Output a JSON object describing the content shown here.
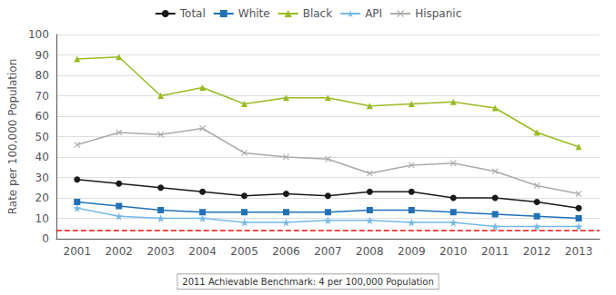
{
  "chart_data": {
    "type": "line",
    "categories": [
      "2001",
      "2002",
      "2003",
      "2004",
      "2005",
      "2006",
      "2007",
      "2008",
      "2009",
      "2010",
      "2011",
      "2012",
      "2013"
    ],
    "series": [
      {
        "name": "Total",
        "color": "#1a1a1a",
        "marker": "circle",
        "values": [
          29,
          27,
          25,
          23,
          21,
          22,
          21,
          23,
          23,
          20,
          20,
          18,
          15
        ]
      },
      {
        "name": "White",
        "color": "#2171b5",
        "marker": "square",
        "values": [
          18,
          16,
          14,
          13,
          13,
          13,
          13,
          14,
          14,
          13,
          12,
          11,
          10
        ]
      },
      {
        "name": "Black",
        "color": "#99bb22",
        "marker": "triangle",
        "values": [
          88,
          89,
          70,
          74,
          66,
          69,
          69,
          65,
          66,
          67,
          64,
          52,
          45
        ]
      },
      {
        "name": "API",
        "color": "#74b9e8",
        "marker": "star",
        "values": [
          15,
          11,
          10,
          10,
          8,
          8,
          9,
          9,
          8,
          8,
          6,
          6,
          6
        ]
      },
      {
        "name": "Hispanic",
        "color": "#aaaaaa",
        "marker": "x",
        "values": [
          46,
          52,
          51,
          54,
          42,
          40,
          39,
          32,
          36,
          37,
          33,
          26,
          22
        ]
      }
    ],
    "ylabel": "Rate per 100,000 Population",
    "ylim": [
      0,
      100
    ],
    "yticks": [
      0,
      10,
      20,
      30,
      40,
      50,
      60,
      70,
      80,
      90,
      100
    ],
    "reference_lines": [
      {
        "y": 4,
        "label": "2011 Achievable Benchmark: 4 per 100,000 Population",
        "color": "#ee1111",
        "line_style": "dashed"
      }
    ],
    "grid": true,
    "legend": "top"
  }
}
